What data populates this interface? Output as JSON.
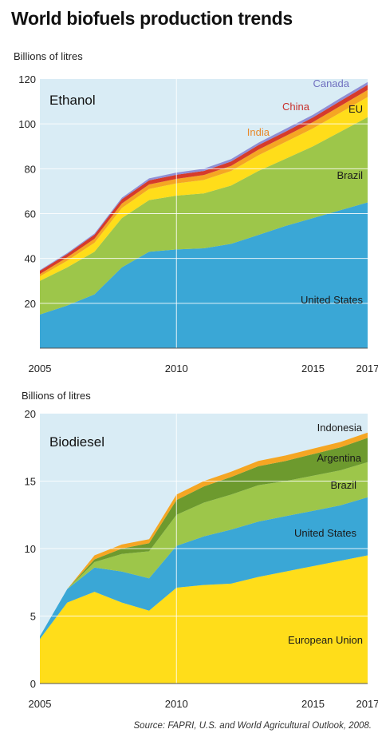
{
  "title": "World biofuels production trends",
  "source": "Source: FAPRI, U.S. and World Agricultural Outlook, 2008.",
  "colors": {
    "panel_bg": "#d9ecf5",
    "grid": "#ffffff",
    "United States": "#3aa7d6",
    "Brazil": "#9dc64a",
    "EU": "#ffdd1a",
    "India": "#f5a623",
    "China": "#d63b2b",
    "Canada": "#8f8fd6",
    "European Union": "#ffdd1a",
    "Argentina": "#6d9a2e",
    "Indonesia": "#f5a623"
  },
  "chart_data": [
    {
      "type": "area",
      "stacked": true,
      "title": "Ethanol",
      "ylabel": "Billions of litres",
      "xlim": [
        2005,
        2017
      ],
      "ylim": [
        0,
        120
      ],
      "yticks": [
        20,
        40,
        60,
        80,
        100,
        120
      ],
      "xticks": [
        2005,
        2010,
        2015,
        2017
      ],
      "x": [
        2005,
        2006,
        2007,
        2008,
        2009,
        2010,
        2011,
        2012,
        2013,
        2014,
        2015,
        2016,
        2017
      ],
      "series": [
        {
          "name": "United States",
          "values": [
            15,
            19,
            24,
            36,
            43,
            44,
            44.5,
            46.5,
            50.5,
            54.5,
            58,
            61.5,
            65
          ]
        },
        {
          "name": "Brazil",
          "values": [
            15,
            17,
            19,
            22,
            23,
            24,
            24.5,
            26,
            28.5,
            30,
            32,
            35,
            38
          ]
        },
        {
          "name": "EU",
          "values": [
            2,
            3,
            4,
            4.5,
            5,
            5.5,
            6,
            6.5,
            7,
            7.5,
            8,
            8.5,
            9
          ]
        },
        {
          "name": "India",
          "values": [
            1,
            1.5,
            1.8,
            2,
            2,
            2,
            2.2,
            2.3,
            2.5,
            2.6,
            2.8,
            3,
            3.1
          ]
        },
        {
          "name": "China",
          "values": [
            1.5,
            1.5,
            1.8,
            1.9,
            1.8,
            1.8,
            1.8,
            1.9,
            2,
            2,
            2.1,
            2.2,
            2.3
          ]
        },
        {
          "name": "Canada",
          "values": [
            0.3,
            0.4,
            0.5,
            0.7,
            0.9,
            1,
            1,
            1.1,
            1.1,
            1.2,
            1.2,
            1.3,
            1.3
          ]
        }
      ]
    },
    {
      "type": "area",
      "stacked": true,
      "title": "Biodiesel",
      "ylabel": "Billions of litres",
      "xlim": [
        2005,
        2017
      ],
      "ylim": [
        0,
        20
      ],
      "yticks": [
        0,
        5,
        10,
        15,
        20
      ],
      "xticks": [
        2005,
        2010,
        2015,
        2017
      ],
      "x": [
        2005,
        2006,
        2007,
        2008,
        2009,
        2010,
        2011,
        2012,
        2013,
        2014,
        2015,
        2016,
        2017
      ],
      "series": [
        {
          "name": "European Union",
          "values": [
            3.3,
            6,
            6.8,
            6,
            5.4,
            7.1,
            7.3,
            7.4,
            7.9,
            8.3,
            8.7,
            9.1,
            9.5
          ]
        },
        {
          "name": "United States",
          "values": [
            0.2,
            1,
            1.8,
            2.3,
            2.4,
            3.1,
            3.6,
            4,
            4.1,
            4.1,
            4.1,
            4.1,
            4.3
          ]
        },
        {
          "name": "Brazil",
          "values": [
            0,
            0,
            0.4,
            1.3,
            2,
            2.3,
            2.5,
            2.6,
            2.7,
            2.6,
            2.6,
            2.6,
            2.6
          ]
        },
        {
          "name": "Argentina",
          "values": [
            0,
            0,
            0.2,
            0.4,
            0.6,
            1.1,
            1.2,
            1.3,
            1.4,
            1.5,
            1.6,
            1.7,
            1.8
          ]
        },
        {
          "name": "Indonesia",
          "values": [
            0,
            0,
            0.3,
            0.3,
            0.3,
            0.4,
            0.4,
            0.4,
            0.4,
            0.4,
            0.4,
            0.4,
            0.4
          ]
        }
      ]
    }
  ]
}
